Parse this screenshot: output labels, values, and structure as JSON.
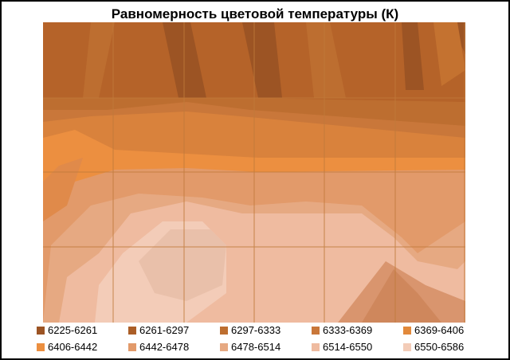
{
  "chart_data": {
    "type": "surface-contour",
    "title": "Равномерность  цветовой температуры (К)",
    "legend": [
      {
        "label": "6225-6261",
        "color": "#9c5424"
      },
      {
        "label": "6261-6297",
        "color": "#ab5e27"
      },
      {
        "label": "6297-6333",
        "color": "#bd6e30"
      },
      {
        "label": "6333-6369",
        "color": "#c9773a"
      },
      {
        "label": "6369-6406",
        "color": "#e2893b"
      },
      {
        "label": "6406-6442",
        "color": "#ec8f40"
      },
      {
        "label": "6442-6478",
        "color": "#e29a6a"
      },
      {
        "label": "6478-6514",
        "color": "#e6a982"
      },
      {
        "label": "6514-6550",
        "color": "#efbba0"
      },
      {
        "label": "6550-6586",
        "color": "#f3ccb8"
      }
    ],
    "grid": true,
    "legend_position": "bottom"
  }
}
